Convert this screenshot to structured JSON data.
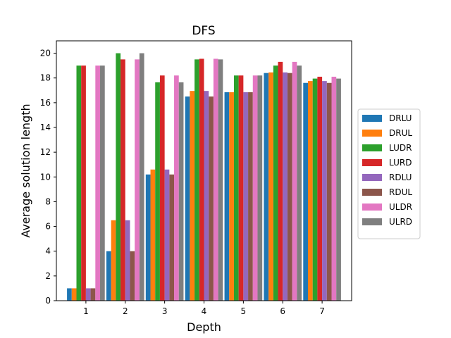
{
  "chart_data": {
    "type": "bar",
    "title": "DFS",
    "xlabel": "Depth",
    "ylabel": "Average solution length",
    "categories": [
      "1",
      "2",
      "3",
      "4",
      "5",
      "6",
      "7"
    ],
    "yticks": [
      "0",
      "2",
      "4",
      "6",
      "8",
      "10",
      "12",
      "14",
      "16",
      "18",
      "20"
    ],
    "ylim": [
      0,
      21
    ],
    "legend_position": "center-right",
    "series": [
      {
        "name": "DRLU",
        "color": "#1f77b4",
        "values": [
          1.0,
          4.0,
          10.2,
          16.5,
          16.85,
          18.4,
          17.6
        ]
      },
      {
        "name": "DRUL",
        "color": "#ff7f0e",
        "values": [
          1.0,
          6.5,
          10.6,
          16.95,
          16.85,
          18.45,
          17.75
        ]
      },
      {
        "name": "LUDR",
        "color": "#2ca02c",
        "values": [
          19.0,
          20.0,
          17.65,
          19.5,
          18.2,
          19.0,
          17.95
        ]
      },
      {
        "name": "LURD",
        "color": "#d62728",
        "values": [
          19.0,
          19.5,
          18.2,
          19.55,
          18.2,
          19.3,
          18.1
        ]
      },
      {
        "name": "RDLU",
        "color": "#9467bd",
        "values": [
          1.0,
          6.5,
          10.6,
          16.95,
          16.85,
          18.45,
          17.75
        ]
      },
      {
        "name": "RDUL",
        "color": "#8c564b",
        "values": [
          1.0,
          4.0,
          10.2,
          16.5,
          16.85,
          18.4,
          17.6
        ]
      },
      {
        "name": "ULDR",
        "color": "#e377c2",
        "values": [
          19.0,
          19.5,
          18.2,
          19.55,
          18.2,
          19.3,
          18.1
        ]
      },
      {
        "name": "ULRD",
        "color": "#7f7f7f",
        "values": [
          19.0,
          20.0,
          17.65,
          19.5,
          18.2,
          19.0,
          17.95
        ]
      }
    ]
  }
}
